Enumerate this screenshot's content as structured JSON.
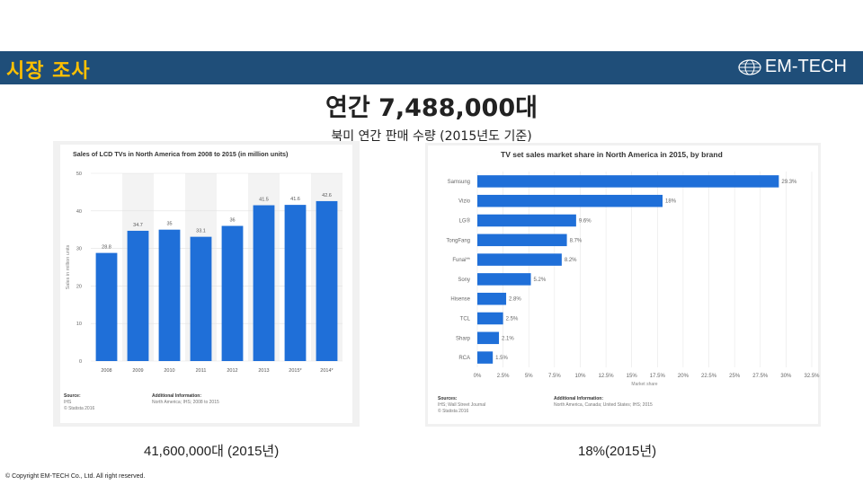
{
  "header": {
    "title": "시장 조사",
    "logo_text": "EM-TECH",
    "logo_icon": "globe-icon"
  },
  "headline": "연간 7,488,000대",
  "subheadline": "북미 연간 판매 수량 (2015년도 기준)",
  "captions": {
    "left": "41,600,000대 (2015년)",
    "right": "18%(2015년)"
  },
  "copyright": "© Copyright EM-TECH Co., Ltd. All right reserved.",
  "colors": {
    "header_bg": "#1f4e79",
    "header_title": "#ffc000",
    "bar": "#1f6fd8"
  },
  "chart_data": [
    {
      "type": "bar",
      "title": "Sales of LCD TVs in North America from 2008 to 2015 (in million units)",
      "categories": [
        "2008",
        "2009",
        "2010",
        "2011",
        "2012",
        "2013",
        "2015*",
        "2014*"
      ],
      "values": [
        28.8,
        34.7,
        35,
        33.1,
        36,
        41.5,
        41.6,
        42.6
      ],
      "value_labels": [
        "28.8",
        "34.7",
        "35",
        "33.1",
        "36",
        "41.5",
        "41.6",
        "42.6"
      ],
      "ylabel": "Sales in million units",
      "xlabel": "",
      "ylim": [
        0,
        50
      ],
      "yticks": [
        "0",
        "10",
        "20",
        "30",
        "40",
        "50"
      ],
      "source": [
        "Source:",
        "IHS",
        "© Statista 2016"
      ],
      "additional_info": [
        "Additional Information:",
        "North America; IHS; 2008 to 2015"
      ]
    },
    {
      "type": "bar",
      "orientation": "horizontal",
      "title": "TV set sales market share in North America in 2015, by brand",
      "categories": [
        "Samsung",
        "Vizio",
        "LG®",
        "TongFang",
        "Funai**",
        "Sony",
        "Hisense",
        "TCL",
        "Sharp",
        "RCA"
      ],
      "values": [
        29.3,
        18,
        9.6,
        8.7,
        8.2,
        5.2,
        2.8,
        2.5,
        2.1,
        1.5
      ],
      "value_labels": [
        "29.3%",
        "18%",
        "9.6%",
        "8.7%",
        "8.2%",
        "5.2%",
        "2.8%",
        "2.5%",
        "2.1%",
        "1.5%"
      ],
      "xlabel": "Market share",
      "xlim": [
        0,
        32.5
      ],
      "xticks": [
        "0%",
        "2.5%",
        "5%",
        "7.5%",
        "10%",
        "12.5%",
        "15%",
        "17.5%",
        "20%",
        "22.5%",
        "25%",
        "27.5%",
        "30%",
        "32.5%"
      ],
      "source": [
        "Sources:",
        "IHS; Wall Street Journal",
        "© Statista 2016"
      ],
      "additional_info": [
        "Additional Information:",
        "North America, Canada; United States; IHS; 2015"
      ]
    }
  ]
}
